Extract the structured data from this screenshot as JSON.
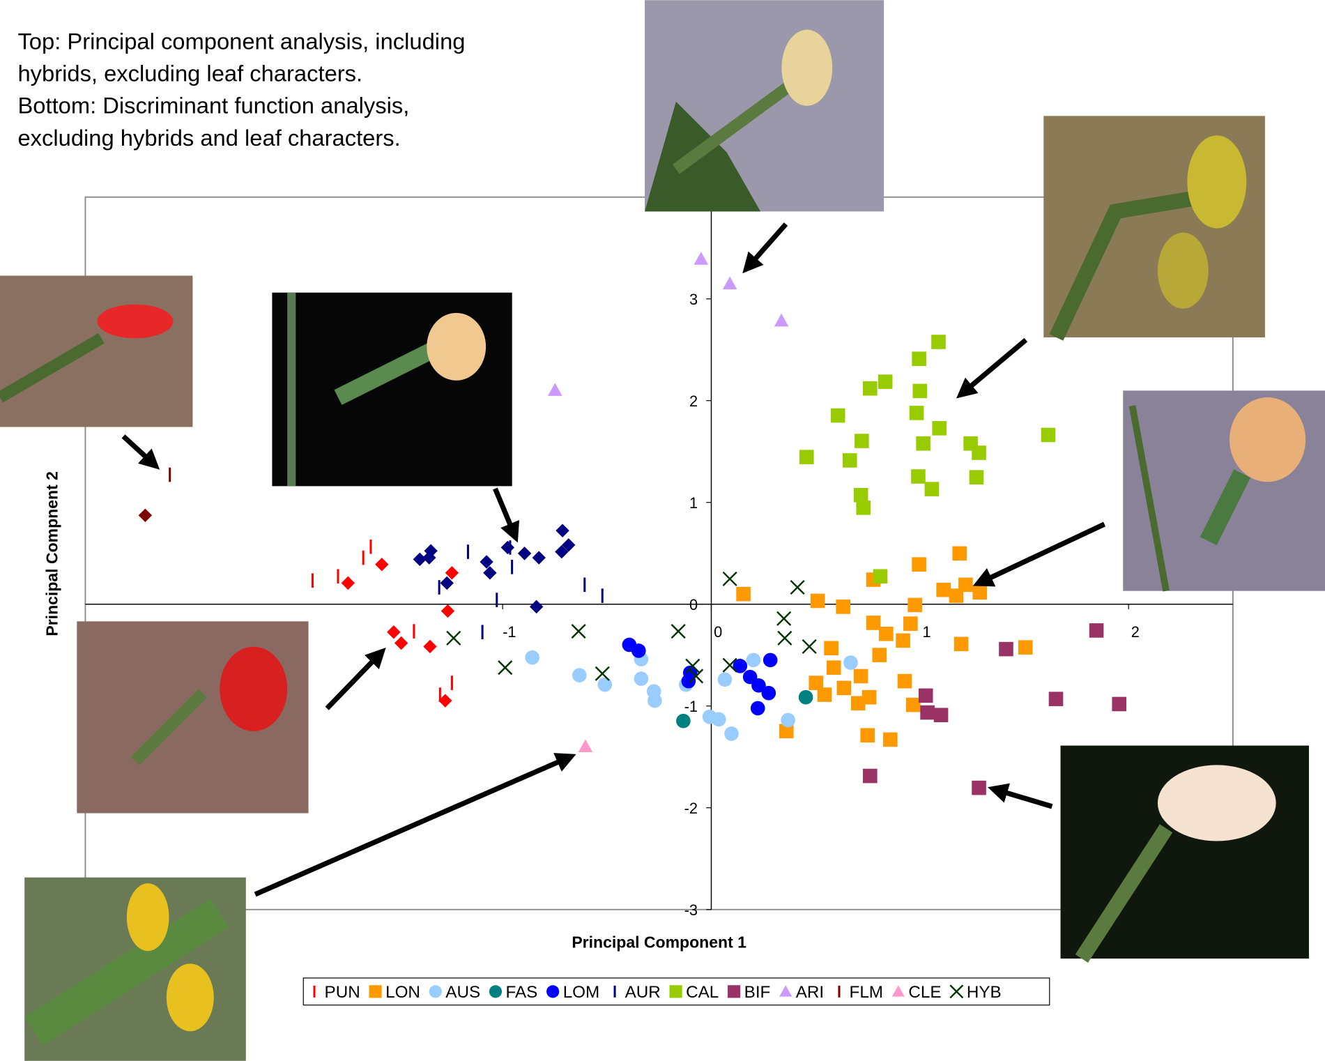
{
  "chart_data": {
    "type": "scatter",
    "title_lines": [
      "Top: Principal component analysis, including",
      "hybrids, excluding leaf characters.",
      "Bottom: Discriminant function analysis,",
      "excluding hybrids and leaf characters."
    ],
    "x_label": "Principal Component 1",
    "y_label": "Principal Compnent 2",
    "xlim": [
      -3,
      2.5
    ],
    "ylim": [
      -3,
      4
    ],
    "xticks": [
      -1,
      0,
      1,
      2
    ],
    "yticks": [
      -3,
      -2,
      -1,
      0,
      1,
      2,
      3
    ],
    "series": [
      {
        "name": "PUN",
        "color": "#ff0000",
        "marker": "dash",
        "x": [
          -1.911,
          -1.789,
          -1.668,
          -1.632,
          -1.425,
          -1.3,
          -1.243
        ],
        "values": [
          0.233,
          0.274,
          0.457,
          0.565,
          -0.266,
          -0.889,
          -0.773
        ]
      },
      {
        "name": "LON",
        "color": "#ff9900",
        "marker": "square",
        "x": [
          0.154,
          0.51,
          0.632,
          0.777,
          0.996,
          0.976,
          1.113,
          1.19,
          1.174,
          1.219,
          1.287,
          0.777,
          0.838,
          0.955,
          0.919,
          1.198,
          1.506,
          0.575,
          0.587,
          0.502,
          0.543,
          0.636,
          0.717,
          0.704,
          0.757,
          0.806,
          0.927,
          0.968,
          0.749,
          0.858,
          0.36
        ],
        "values": [
          0.1,
          0.033,
          -0.025,
          0.241,
          0.391,
          -0.008,
          0.141,
          0.499,
          0.083,
          0.191,
          0.116,
          -0.183,
          -0.291,
          -0.191,
          -0.357,
          -0.391,
          -0.424,
          -0.432,
          -0.623,
          -0.773,
          -0.889,
          -0.823,
          -0.707,
          -0.973,
          -0.914,
          -0.499,
          -0.756,
          -0.989,
          -1.288,
          -1.33,
          -1.247
        ]
      },
      {
        "name": "AUS",
        "color": "#99ccff",
        "marker": "circle",
        "x": [
          -0.858,
          -0.632,
          -0.51,
          -0.336,
          -0.336,
          -0.275,
          -0.271,
          -0.121,
          -0.008,
          0.036,
          0.065,
          0.097,
          0.202,
          0.368,
          0.668
        ],
        "values": [
          -0.524,
          -0.698,
          -0.79,
          -0.54,
          -0.732,
          -0.856,
          -0.948,
          -0.79,
          -1.106,
          -1.131,
          -0.74,
          -1.272,
          -0.549,
          -1.139,
          -0.574
        ]
      },
      {
        "name": "FAS",
        "color": "#008080",
        "marker": "circle",
        "x": [
          -0.134,
          0.453
        ],
        "values": [
          -1.147,
          -0.914
        ]
      },
      {
        "name": "LOM",
        "color": "#0000ff",
        "marker": "circle",
        "x": [
          -0.393,
          -0.348,
          -0.109,
          -0.101,
          0.138,
          0.186,
          0.227,
          0.275,
          0.283,
          0.223
        ],
        "values": [
          -0.399,
          -0.457,
          -0.756,
          -0.673,
          -0.607,
          -0.715,
          -0.798,
          -0.873,
          -0.549,
          -1.022
        ]
      },
      {
        "name": "AUR",
        "color": "#000080",
        "marker": "dash",
        "x": [
          -1.304,
          -1.166,
          -1.097,
          -1.028,
          -0.964,
          -0.955,
          -0.607,
          -0.522
        ],
        "values": [
          0.166,
          0.515,
          -0.274,
          0.042,
          0.557,
          0.366,
          0.191,
          0.083
        ]
      },
      {
        "name": "CAL",
        "color": "#99cc00",
        "marker": "square",
        "x": [
          0.457,
          0.607,
          0.664,
          0.721,
          0.717,
          0.729,
          0.761,
          0.834,
          0.996,
          1.0,
          0.984,
          1.089,
          1.093,
          1.016,
          0.992,
          1.057,
          1.243,
          1.283,
          1.271,
          1.615,
          0.81
        ],
        "values": [
          1.446,
          1.854,
          1.413,
          1.604,
          1.072,
          0.948,
          2.12,
          2.186,
          2.411,
          2.095,
          1.879,
          2.577,
          1.729,
          1.579,
          1.255,
          1.131,
          1.579,
          1.488,
          1.247,
          1.663,
          0.274
        ]
      },
      {
        "name": "BIF",
        "color": "#993366",
        "marker": "square",
        "x": [
          1.846,
          1.413,
          1.652,
          1.955,
          1.028,
          1.036,
          1.101,
          0.761,
          1.283
        ],
        "values": [
          -0.258,
          -0.441,
          -0.931,
          -0.981,
          -0.898,
          -1.064,
          -1.089,
          -1.687,
          -1.804
        ]
      },
      {
        "name": "ARI",
        "color": "#cc99ff",
        "marker": "triangle",
        "x": [
          -0.049,
          0.089,
          0.336,
          -0.749
        ],
        "values": [
          3.392,
          3.15,
          2.785,
          2.103
        ]
      },
      {
        "name": "FLM",
        "color": "#800000",
        "marker": "dash",
        "x": [
          -2.595
        ],
        "values": [
          1.272
        ]
      },
      {
        "name": "CLE",
        "color": "#ff99cc",
        "marker": "triangle",
        "x": [
          -0.603
        ],
        "values": [
          -1.397
        ]
      },
      {
        "name": "HYB",
        "color": "#003300",
        "marker": "x",
        "x": [
          0.089,
          0.413,
          0.348,
          0.352,
          0.47,
          -0.158,
          -0.636,
          -0.522,
          -0.988,
          -1.235,
          -0.089,
          -0.073,
          0.089
        ],
        "values": [
          0.249,
          0.166,
          -0.141,
          -0.333,
          -0.416,
          -0.266,
          -0.266,
          -0.682,
          -0.623,
          -0.333,
          -0.607,
          -0.707,
          -0.599
        ]
      },
      {
        "color": "#ff0000",
        "marker": "diamond",
        "x": [
          -1.741,
          -1.579,
          -1.522,
          -1.486,
          -1.348,
          -1.263,
          -1.243,
          -1.275
        ],
        "values": [
          0.208,
          0.391,
          -0.274,
          -0.382,
          -0.416,
          -0.067,
          0.308,
          -0.948
        ]
      },
      {
        "color": "#000080",
        "marker": "diamond",
        "x": [
          -1.397,
          -1.352,
          -1.344,
          -1.267,
          -1.077,
          -1.061,
          -0.976,
          -0.895,
          -0.826,
          -0.838,
          -0.713,
          -0.717,
          -0.684
        ],
        "values": [
          0.441,
          0.457,
          0.524,
          0.208,
          0.416,
          0.308,
          0.557,
          0.499,
          0.457,
          -0.025,
          0.723,
          0.515,
          0.582
        ]
      },
      {
        "color": "#800000",
        "marker": "diamond",
        "x": [
          -2.713
        ],
        "values": [
          0.873
        ]
      }
    ]
  }
}
